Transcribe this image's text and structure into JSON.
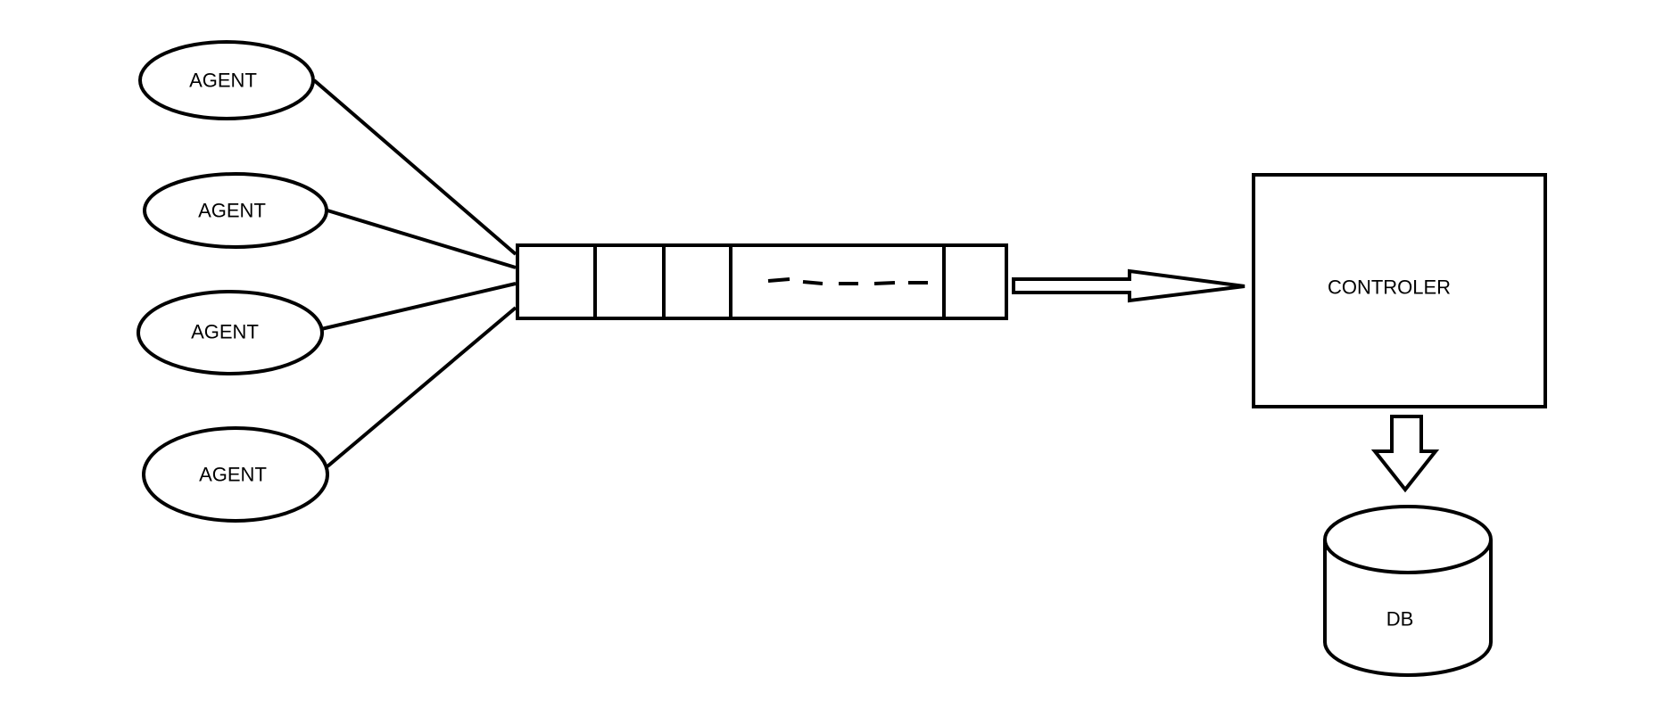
{
  "agents": [
    {
      "label": "AGENT"
    },
    {
      "label": "AGENT"
    },
    {
      "label": "AGENT"
    },
    {
      "label": "AGENT"
    }
  ],
  "controller": {
    "label": "CONTROLER"
  },
  "database": {
    "label": "DB"
  },
  "colors": {
    "stroke": "#000000",
    "background": "#ffffff"
  }
}
